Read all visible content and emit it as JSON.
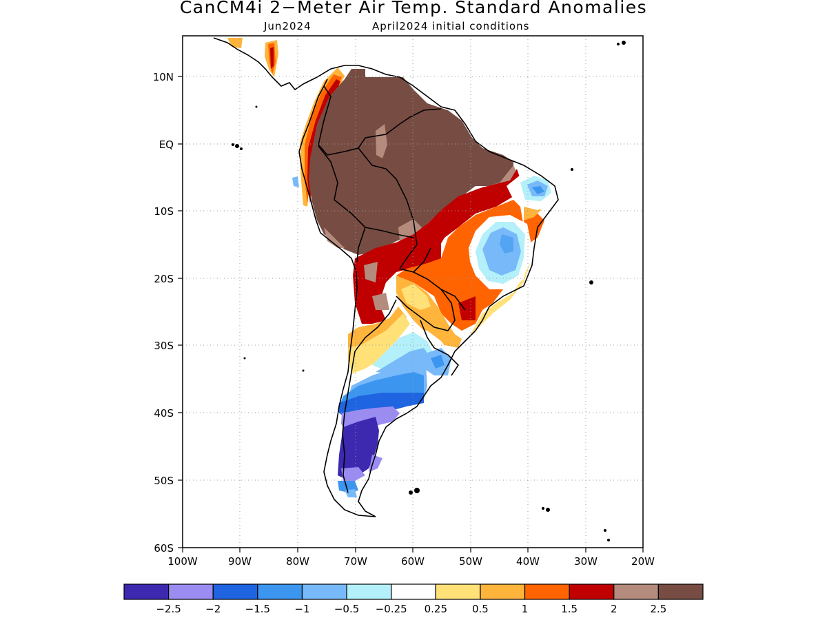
{
  "title": "CanCM4i 2−Meter Air Temp. Standard Anomalies",
  "subtitle_left": "Jun2024",
  "subtitle_right": "April2024 initial conditions",
  "lat_labels": [
    "10N",
    "EQ",
    "10S",
    "20S",
    "30S",
    "40S",
    "50S",
    "60S"
  ],
  "lon_labels": [
    "100W",
    "90W",
    "80W",
    "70W",
    "60W",
    "50W",
    "40W",
    "30W",
    "20W"
  ],
  "colorbar": {
    "colors": [
      "#3c29b0",
      "#9b8cf2",
      "#1f64e0",
      "#3c96f0",
      "#78b9fa",
      "#b4f0fa",
      "#ffffff",
      "#ffe178",
      "#ffb43c",
      "#ff6400",
      "#c00000",
      "#b48b7d",
      "#774d43"
    ],
    "labels": [
      "−2.5",
      "−2",
      "−1.5",
      "−1",
      "−0.5",
      "−0.25",
      "0.25",
      "0.5",
      "1",
      "1.5",
      "2",
      "2.5"
    ]
  },
  "map": {
    "region": "South America",
    "lon_range": [
      -100,
      -20
    ],
    "lat_range": [
      -60,
      16
    ],
    "grid": "dotted"
  }
}
